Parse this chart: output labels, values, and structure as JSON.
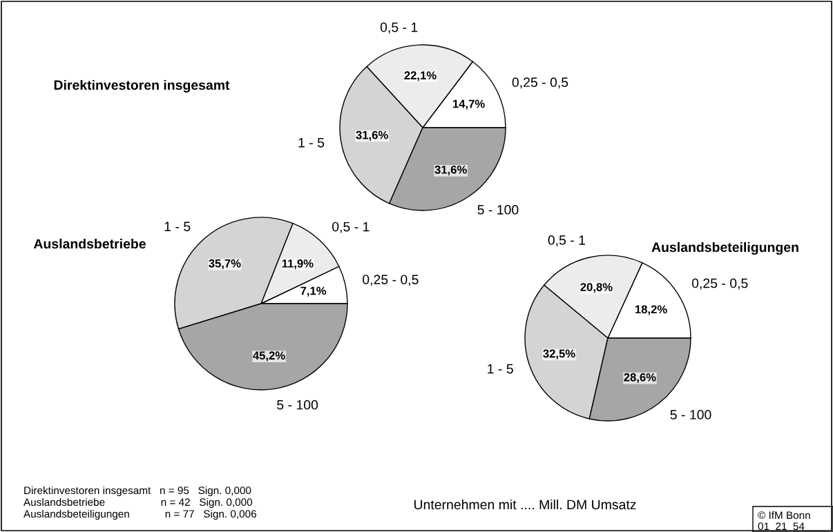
{
  "chart_data": [
    {
      "type": "pie",
      "title": "Direktinvestoren insgesamt",
      "categories": [
        "0,25 - 0,5",
        "0,5 - 1",
        "1 - 5",
        "5 - 100"
      ],
      "values": [
        14.7,
        22.1,
        31.6,
        31.6
      ],
      "colors": [
        "#ffffff",
        "#ececec",
        "#d4d4d4",
        "#a6a6a6"
      ],
      "value_labels": [
        "14,7%",
        "22,1%",
        "31,6%",
        "31,6%"
      ],
      "annotations": [
        "Direktinvestoren insgesamt   n = 95   Sign. 0,000",
        "Auslandsbetriebe                   n = 42   Sign. 0,000",
        "Auslandsbeteiligungen            n = 77   Sign. 0,006",
        "Unternehmen mit .... Mill. DM Umsatz",
        "© IfM Bonn",
        "01  21  54"
      ]
    },
    {
      "type": "pie",
      "title": "Auslandsbetriebe",
      "categories": [
        "0,25 - 0,5",
        "0,5 - 1",
        "1 - 5",
        "5 - 100"
      ],
      "values": [
        7.1,
        11.9,
        35.7,
        45.2
      ],
      "colors": [
        "#ffffff",
        "#ececec",
        "#d4d4d4",
        "#a6a6a6"
      ],
      "value_labels": [
        "7,1%",
        "11,9%",
        "35,7%",
        "45,2%"
      ]
    },
    {
      "type": "pie",
      "title": "Auslandsbeteiligungen",
      "categories": [
        "0,25 - 0,5",
        "0,5 - 1",
        "1 - 5",
        "5 - 100"
      ],
      "values": [
        18.2,
        20.8,
        32.5,
        28.6
      ],
      "colors": [
        "#ffffff",
        "#ececec",
        "#d4d4d4",
        "#a6a6a6"
      ],
      "value_labels": [
        "18,2%",
        "20,8%",
        "32,5%",
        "28,6%"
      ]
    }
  ]
}
